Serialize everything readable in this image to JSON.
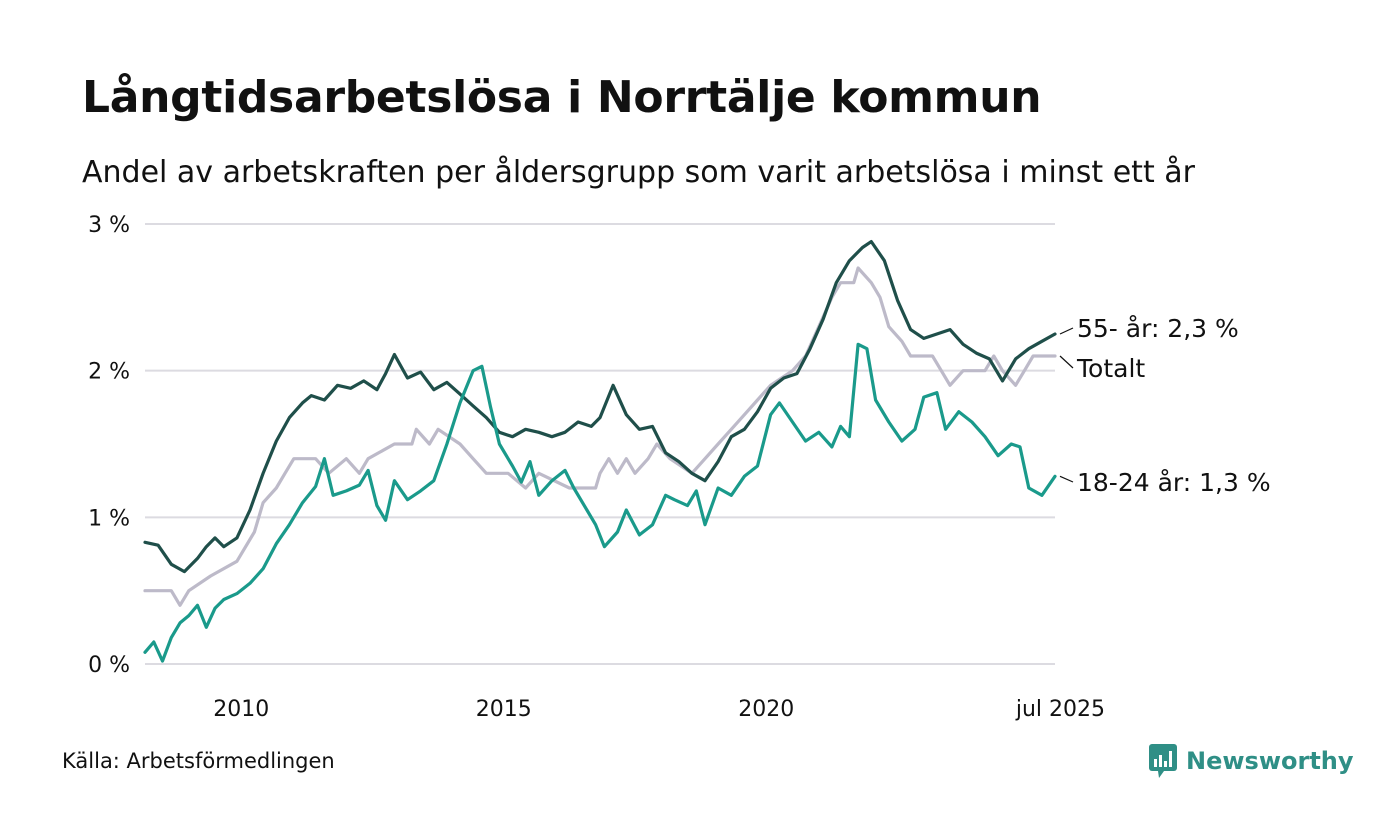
{
  "title": "Långtidsarbetslösa i Norrtälje kommun",
  "subtitle": "Andel av arbetskraften per åldersgrupp som varit arbetslösa i minst ett år",
  "source": "Källa: Arbetsförmedlingen",
  "brand": {
    "name": "Newsworthy",
    "icon": "newsworthy-logo-icon",
    "color": "#2f8f86"
  },
  "chart_data": {
    "type": "line",
    "x_range": [
      "2008-03",
      "2025-07"
    ],
    "y_range": [
      0,
      3
    ],
    "y_ticks": [
      {
        "value": 0,
        "label": "0 %"
      },
      {
        "value": 1,
        "label": "1 %"
      },
      {
        "value": 2,
        "label": "2 %"
      },
      {
        "value": 3,
        "label": "3 %"
      }
    ],
    "x_ticks": [
      {
        "date": "2010-01",
        "label": "2010"
      },
      {
        "date": "2015-01",
        "label": "2015"
      },
      {
        "date": "2020-01",
        "label": "2020"
      },
      {
        "date": "2025-07",
        "label": "jul 2025"
      }
    ],
    "grid": true,
    "series": [
      {
        "key": "total",
        "name": "Totalt",
        "label": "Totalt",
        "color": "#bdbac9",
        "points": [
          [
            "2008-03",
            0.5
          ],
          [
            "2008-09",
            0.5
          ],
          [
            "2008-11",
            0.4
          ],
          [
            "2009-01",
            0.5
          ],
          [
            "2009-06",
            0.6
          ],
          [
            "2009-12",
            0.7
          ],
          [
            "2010-04",
            0.9
          ],
          [
            "2010-06",
            1.1
          ],
          [
            "2010-09",
            1.2
          ],
          [
            "2010-11",
            1.3
          ],
          [
            "2011-01",
            1.4
          ],
          [
            "2011-06",
            1.4
          ],
          [
            "2011-09",
            1.3
          ],
          [
            "2012-01",
            1.4
          ],
          [
            "2012-04",
            1.3
          ],
          [
            "2012-06",
            1.4
          ],
          [
            "2012-12",
            1.5
          ],
          [
            "2013-04",
            1.5
          ],
          [
            "2013-05",
            1.6
          ],
          [
            "2013-08",
            1.5
          ],
          [
            "2013-10",
            1.6
          ],
          [
            "2014-03",
            1.5
          ],
          [
            "2014-06",
            1.4
          ],
          [
            "2014-09",
            1.3
          ],
          [
            "2015-02",
            1.3
          ],
          [
            "2015-06",
            1.2
          ],
          [
            "2015-09",
            1.3
          ],
          [
            "2016-04",
            1.2
          ],
          [
            "2016-07",
            1.2
          ],
          [
            "2016-10",
            1.2
          ],
          [
            "2016-11",
            1.3
          ],
          [
            "2017-01",
            1.4
          ],
          [
            "2017-03",
            1.3
          ],
          [
            "2017-05",
            1.4
          ],
          [
            "2017-07",
            1.3
          ],
          [
            "2017-10",
            1.4
          ],
          [
            "2017-12",
            1.5
          ],
          [
            "2018-03",
            1.4
          ],
          [
            "2018-08",
            1.3
          ],
          [
            "2018-11",
            1.4
          ],
          [
            "2019-02",
            1.5
          ],
          [
            "2019-05",
            1.6
          ],
          [
            "2019-08",
            1.7
          ],
          [
            "2019-11",
            1.8
          ],
          [
            "2020-02",
            1.9
          ],
          [
            "2020-07",
            2.0
          ],
          [
            "2020-10",
            2.1
          ],
          [
            "2021-01",
            2.3
          ],
          [
            "2021-04",
            2.5
          ],
          [
            "2021-06",
            2.6
          ],
          [
            "2021-09",
            2.6
          ],
          [
            "2021-10",
            2.7
          ],
          [
            "2022-01",
            2.6
          ],
          [
            "2022-03",
            2.5
          ],
          [
            "2022-05",
            2.3
          ],
          [
            "2022-08",
            2.2
          ],
          [
            "2022-10",
            2.1
          ],
          [
            "2023-03",
            2.1
          ],
          [
            "2023-05",
            2.0
          ],
          [
            "2023-07",
            1.9
          ],
          [
            "2023-10",
            2.0
          ],
          [
            "2024-03",
            2.0
          ],
          [
            "2024-05",
            2.1
          ],
          [
            "2024-07",
            2.0
          ],
          [
            "2024-10",
            1.9
          ],
          [
            "2024-12",
            2.0
          ],
          [
            "2025-02",
            2.1
          ],
          [
            "2025-07",
            2.1
          ]
        ]
      },
      {
        "key": "age55",
        "name": "55- år",
        "label": "55- år: 2,3 %",
        "color": "#1f4f4a",
        "points": [
          [
            "2008-03",
            0.83
          ],
          [
            "2008-06",
            0.81
          ],
          [
            "2008-09",
            0.68
          ],
          [
            "2008-12",
            0.63
          ],
          [
            "2009-03",
            0.72
          ],
          [
            "2009-05",
            0.8
          ],
          [
            "2009-07",
            0.86
          ],
          [
            "2009-09",
            0.8
          ],
          [
            "2009-12",
            0.86
          ],
          [
            "2010-03",
            1.05
          ],
          [
            "2010-06",
            1.3
          ],
          [
            "2010-09",
            1.52
          ],
          [
            "2010-12",
            1.68
          ],
          [
            "2011-03",
            1.78
          ],
          [
            "2011-05",
            1.83
          ],
          [
            "2011-08",
            1.8
          ],
          [
            "2011-11",
            1.9
          ],
          [
            "2012-02",
            1.88
          ],
          [
            "2012-05",
            1.93
          ],
          [
            "2012-08",
            1.87
          ],
          [
            "2012-10",
            1.98
          ],
          [
            "2012-12",
            2.11
          ],
          [
            "2013-03",
            1.95
          ],
          [
            "2013-06",
            1.99
          ],
          [
            "2013-09",
            1.87
          ],
          [
            "2013-12",
            1.92
          ],
          [
            "2014-03",
            1.84
          ],
          [
            "2014-06",
            1.76
          ],
          [
            "2014-09",
            1.68
          ],
          [
            "2014-12",
            1.58
          ],
          [
            "2015-03",
            1.55
          ],
          [
            "2015-06",
            1.6
          ],
          [
            "2015-09",
            1.58
          ],
          [
            "2015-12",
            1.55
          ],
          [
            "2016-03",
            1.58
          ],
          [
            "2016-06",
            1.65
          ],
          [
            "2016-09",
            1.62
          ],
          [
            "2016-11",
            1.68
          ],
          [
            "2017-02",
            1.9
          ],
          [
            "2017-05",
            1.7
          ],
          [
            "2017-08",
            1.6
          ],
          [
            "2017-11",
            1.62
          ],
          [
            "2018-02",
            1.44
          ],
          [
            "2018-05",
            1.38
          ],
          [
            "2018-08",
            1.3
          ],
          [
            "2018-11",
            1.25
          ],
          [
            "2019-02",
            1.38
          ],
          [
            "2019-05",
            1.55
          ],
          [
            "2019-08",
            1.6
          ],
          [
            "2019-11",
            1.72
          ],
          [
            "2020-02",
            1.88
          ],
          [
            "2020-05",
            1.95
          ],
          [
            "2020-08",
            1.98
          ],
          [
            "2020-11",
            2.15
          ],
          [
            "2021-02",
            2.35
          ],
          [
            "2021-05",
            2.6
          ],
          [
            "2021-08",
            2.75
          ],
          [
            "2021-11",
            2.84
          ],
          [
            "2022-01",
            2.88
          ],
          [
            "2022-04",
            2.75
          ],
          [
            "2022-07",
            2.48
          ],
          [
            "2022-10",
            2.28
          ],
          [
            "2023-01",
            2.22
          ],
          [
            "2023-04",
            2.25
          ],
          [
            "2023-07",
            2.28
          ],
          [
            "2023-10",
            2.18
          ],
          [
            "2024-01",
            2.12
          ],
          [
            "2024-04",
            2.08
          ],
          [
            "2024-07",
            1.93
          ],
          [
            "2024-10",
            2.08
          ],
          [
            "2025-01",
            2.15
          ],
          [
            "2025-04",
            2.2
          ],
          [
            "2025-07",
            2.25
          ]
        ]
      },
      {
        "key": "age1824",
        "name": "18-24 år",
        "label": "18-24 år: 1,3 %",
        "color": "#1a9a8b",
        "points": [
          [
            "2008-03",
            0.08
          ],
          [
            "2008-05",
            0.15
          ],
          [
            "2008-07",
            0.02
          ],
          [
            "2008-09",
            0.18
          ],
          [
            "2008-11",
            0.28
          ],
          [
            "2009-01",
            0.33
          ],
          [
            "2009-03",
            0.4
          ],
          [
            "2009-05",
            0.25
          ],
          [
            "2009-07",
            0.38
          ],
          [
            "2009-09",
            0.44
          ],
          [
            "2009-12",
            0.48
          ],
          [
            "2010-03",
            0.55
          ],
          [
            "2010-06",
            0.65
          ],
          [
            "2010-09",
            0.82
          ],
          [
            "2010-12",
            0.95
          ],
          [
            "2011-03",
            1.1
          ],
          [
            "2011-06",
            1.21
          ],
          [
            "2011-08",
            1.4
          ],
          [
            "2011-10",
            1.15
          ],
          [
            "2012-01",
            1.18
          ],
          [
            "2012-04",
            1.22
          ],
          [
            "2012-06",
            1.32
          ],
          [
            "2012-08",
            1.08
          ],
          [
            "2012-10",
            0.98
          ],
          [
            "2012-12",
            1.25
          ],
          [
            "2013-03",
            1.12
          ],
          [
            "2013-06",
            1.18
          ],
          [
            "2013-09",
            1.25
          ],
          [
            "2013-12",
            1.5
          ],
          [
            "2014-03",
            1.78
          ],
          [
            "2014-06",
            2.0
          ],
          [
            "2014-08",
            2.03
          ],
          [
            "2014-10",
            1.75
          ],
          [
            "2014-12",
            1.5
          ],
          [
            "2015-03",
            1.35
          ],
          [
            "2015-05",
            1.24
          ],
          [
            "2015-07",
            1.38
          ],
          [
            "2015-09",
            1.15
          ],
          [
            "2015-12",
            1.25
          ],
          [
            "2016-03",
            1.32
          ],
          [
            "2016-05",
            1.2
          ],
          [
            "2016-08",
            1.05
          ],
          [
            "2016-10",
            0.95
          ],
          [
            "2016-12",
            0.8
          ],
          [
            "2017-03",
            0.9
          ],
          [
            "2017-05",
            1.05
          ],
          [
            "2017-08",
            0.88
          ],
          [
            "2017-11",
            0.95
          ],
          [
            "2018-02",
            1.15
          ],
          [
            "2018-04",
            1.12
          ],
          [
            "2018-07",
            1.08
          ],
          [
            "2018-09",
            1.18
          ],
          [
            "2018-11",
            0.95
          ],
          [
            "2019-02",
            1.2
          ],
          [
            "2019-05",
            1.15
          ],
          [
            "2019-08",
            1.28
          ],
          [
            "2019-11",
            1.35
          ],
          [
            "2020-02",
            1.7
          ],
          [
            "2020-04",
            1.78
          ],
          [
            "2020-07",
            1.65
          ],
          [
            "2020-10",
            1.52
          ],
          [
            "2021-01",
            1.58
          ],
          [
            "2021-04",
            1.48
          ],
          [
            "2021-06",
            1.62
          ],
          [
            "2021-08",
            1.55
          ],
          [
            "2021-10",
            2.18
          ],
          [
            "2021-12",
            2.15
          ],
          [
            "2022-02",
            1.8
          ],
          [
            "2022-05",
            1.65
          ],
          [
            "2022-08",
            1.52
          ],
          [
            "2022-11",
            1.6
          ],
          [
            "2023-01",
            1.82
          ],
          [
            "2023-04",
            1.85
          ],
          [
            "2023-06",
            1.6
          ],
          [
            "2023-09",
            1.72
          ],
          [
            "2023-12",
            1.65
          ],
          [
            "2024-03",
            1.55
          ],
          [
            "2024-06",
            1.42
          ],
          [
            "2024-09",
            1.5
          ],
          [
            "2024-11",
            1.48
          ],
          [
            "2025-01",
            1.2
          ],
          [
            "2025-04",
            1.15
          ],
          [
            "2025-07",
            1.28
          ]
        ]
      }
    ]
  }
}
